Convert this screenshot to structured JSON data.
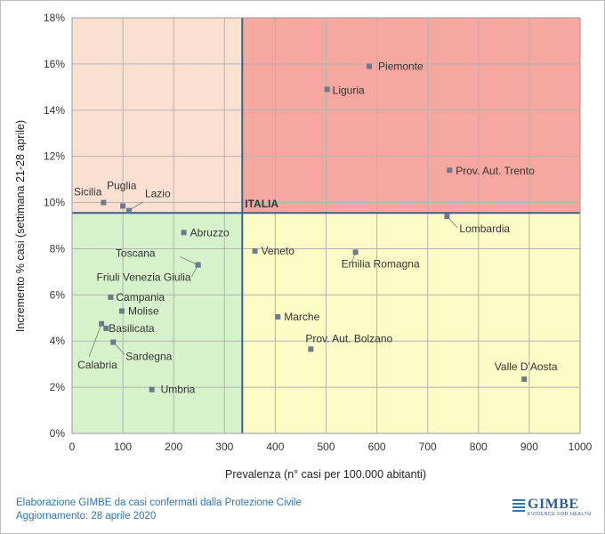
{
  "chart_data": {
    "type": "scatter",
    "title": "",
    "xlabel": "Prevalenza  (n° casi per 100.000 abitanti)",
    "ylabel": "Incremento %  casi (settimana 21-28 aprile)",
    "xlim": [
      0,
      1000
    ],
    "ylim": [
      0,
      18
    ],
    "x_ticks": [
      0,
      100,
      200,
      300,
      400,
      500,
      600,
      700,
      800,
      900,
      1000
    ],
    "y_ticks": [
      0,
      2,
      4,
      6,
      8,
      10,
      12,
      14,
      16,
      18
    ],
    "x_tick_labels": [
      "0",
      "100",
      "200",
      "300",
      "400",
      "500",
      "600",
      "700",
      "800",
      "900",
      "1000"
    ],
    "y_tick_labels": [
      "0%",
      "2%",
      "4%",
      "6%",
      "8%",
      "10%",
      "12%",
      "14%",
      "16%",
      "18%"
    ],
    "reference": {
      "name": "ITALIA",
      "x": 335,
      "y": 9.55
    },
    "quadrant_colors": {
      "top_left": "#fbe0d2",
      "top_right": "#f6a8a0",
      "bottom_left": "#d6f2cb",
      "bottom_right": "#fbfbc6"
    },
    "marker_color": "#6b7b8c",
    "points": [
      {
        "name": "Piemonte",
        "x": 585,
        "y": 15.9
      },
      {
        "name": "Liguria",
        "x": 502,
        "y": 14.9
      },
      {
        "name": "Prov. Aut. Trento",
        "x": 743,
        "y": 11.4
      },
      {
        "name": "Lombardia",
        "x": 738,
        "y": 9.4
      },
      {
        "name": "Sicilia",
        "x": 62,
        "y": 10.0
      },
      {
        "name": "Puglia",
        "x": 100,
        "y": 9.85
      },
      {
        "name": "Lazio",
        "x": 112,
        "y": 9.65
      },
      {
        "name": "Abruzzo",
        "x": 220,
        "y": 8.7
      },
      {
        "name": "Toscana",
        "x": 248,
        "y": 7.3
      },
      {
        "name": "Friuli Venezia Giulia",
        "x": 248,
        "y": 7.3
      },
      {
        "name": "Veneto",
        "x": 360,
        "y": 7.9
      },
      {
        "name": "Emilia Romagna",
        "x": 558,
        "y": 7.85
      },
      {
        "name": "Campania",
        "x": 76,
        "y": 5.9
      },
      {
        "name": "Molise",
        "x": 98,
        "y": 5.3
      },
      {
        "name": "Basilicata",
        "x": 67,
        "y": 4.55
      },
      {
        "name": "Calabria",
        "x": 58,
        "y": 4.75
      },
      {
        "name": "Sardegna",
        "x": 81,
        "y": 3.95
      },
      {
        "name": "Umbria",
        "x": 157,
        "y": 1.9
      },
      {
        "name": "Marche",
        "x": 405,
        "y": 5.05
      },
      {
        "name": "Prov. Aut. Bolzano",
        "x": 470,
        "y": 3.65
      },
      {
        "name": "Valle D'Aosta",
        "x": 890,
        "y": 2.35
      }
    ]
  },
  "footer": {
    "line1": "Elaborazione GIMBE da casi confermati dalla Protezione Civile",
    "line2": "Aggiornamento: 28 aprile 2020"
  },
  "logo": {
    "name": "GIMBE",
    "tagline": "EVIDENCE FOR HEALTH"
  }
}
